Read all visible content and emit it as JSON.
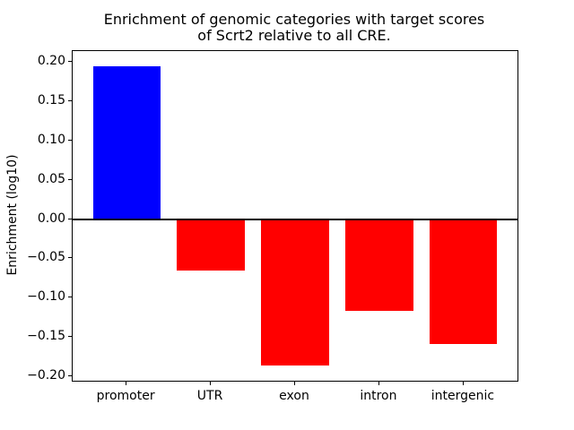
{
  "figure": {
    "title": "Enrichment of genomic categories with target scores\nof Scrt2 relative to all CRE.",
    "ylabel": "Enrichment (log10)"
  },
  "chart_data": {
    "type": "bar",
    "title": "Enrichment of genomic categories with target scores of Scrt2 relative to all CRE.",
    "xlabel": "",
    "ylabel": "Enrichment (log10)",
    "categories": [
      "promoter",
      "UTR",
      "exon",
      "intron",
      "intergenic"
    ],
    "values": [
      0.195,
      -0.066,
      -0.187,
      -0.117,
      -0.159
    ],
    "bar_colors": [
      "#0000ff",
      "#ff0000",
      "#ff0000",
      "#ff0000",
      "#ff0000"
    ],
    "positive_color": "#0000ff",
    "negative_color": "#ff0000",
    "ylim": [
      -0.206,
      0.214
    ],
    "yticks": [
      0.2,
      0.15,
      0.1,
      0.05,
      0.0,
      -0.05,
      -0.1,
      -0.15,
      -0.2
    ],
    "ytick_labels": [
      "0.20",
      "0.15",
      "0.10",
      "0.05",
      "0.00",
      "−0.05",
      "−0.10",
      "−0.15",
      "−0.20"
    ],
    "bar_width_fraction": 0.8,
    "zero_line": true,
    "grid": false,
    "legend": null,
    "background": "#ffffff"
  }
}
